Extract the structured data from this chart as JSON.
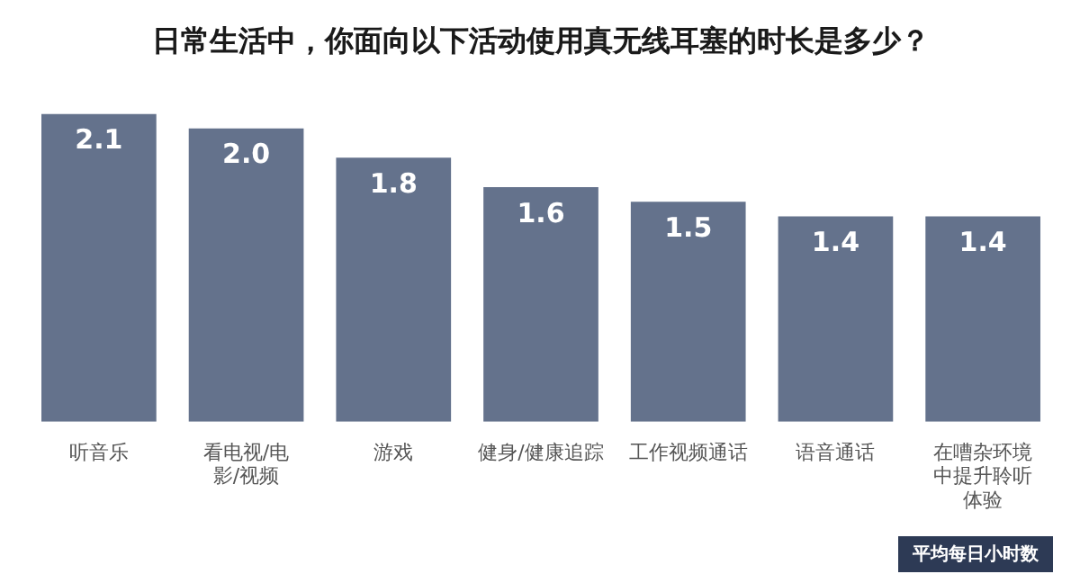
{
  "chart_data": {
    "type": "bar",
    "title": "日常生活中，你面向以下活动使用真无线耳塞的时长是多少？",
    "categories": [
      "听音乐",
      "看电视/电影/视频",
      "游戏",
      "健身/健康追踪",
      "工作视频通话",
      "语音通话",
      "在嘈杂环境中提升聆听体验"
    ],
    "values": [
      2.1,
      2.0,
      1.8,
      1.6,
      1.5,
      1.4,
      1.4
    ],
    "value_labels": [
      "2.1",
      "2.0",
      "1.8",
      "1.6",
      "1.5",
      "1.4",
      "1.4"
    ],
    "color": "#64728c",
    "grid": false,
    "legend": false,
    "annotations": [
      "平均每日小时数"
    ]
  }
}
